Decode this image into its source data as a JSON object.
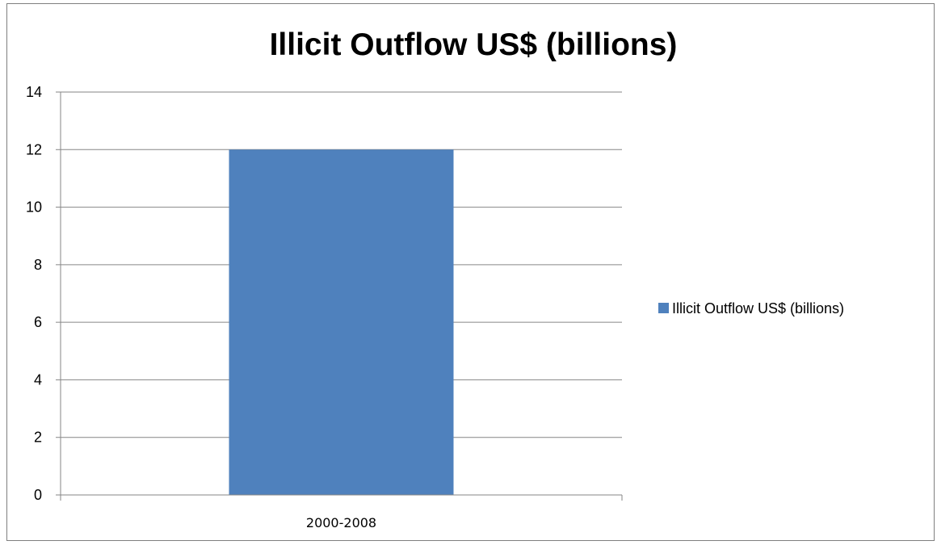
{
  "chart_data": {
    "type": "bar",
    "title": "Illicit Outflow US$ (billions)",
    "xlabel": "",
    "ylabel": "",
    "categories": [
      "2000-2008"
    ],
    "series": [
      {
        "name": "Illicit Outflow US$ (billions)",
        "values": [
          12
        ],
        "color": "#4f81bd"
      }
    ],
    "ylim": [
      0,
      14
    ],
    "yticks": [
      0,
      2,
      4,
      6,
      8,
      10,
      12,
      14
    ],
    "grid": true,
    "legend_position": "right"
  }
}
